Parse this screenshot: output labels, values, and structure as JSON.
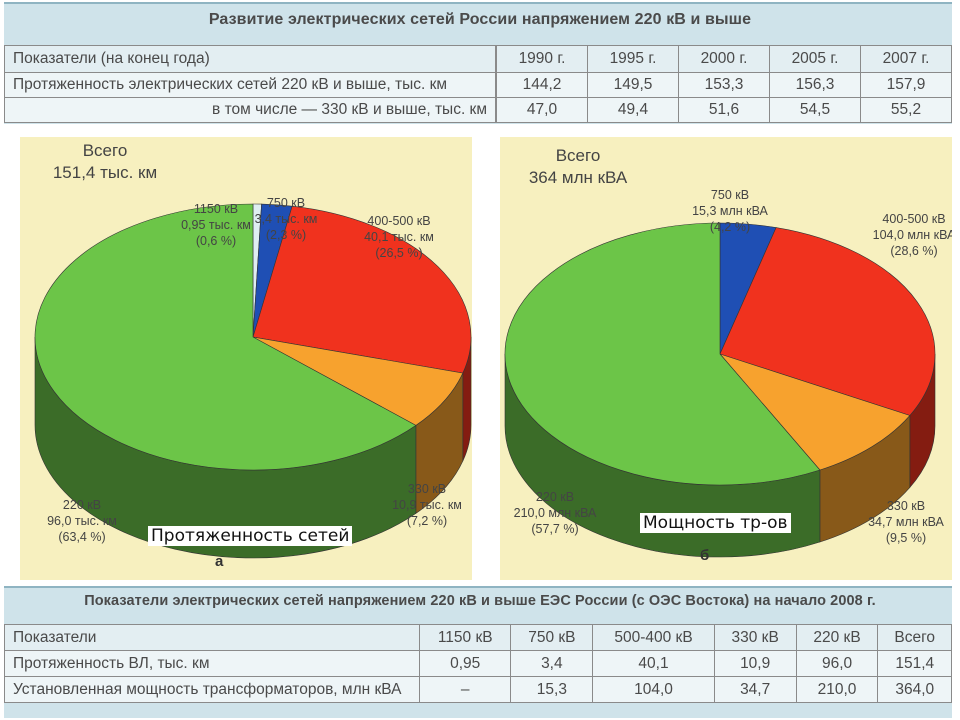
{
  "top": {
    "title": "Развитие электрических сетей России напряжением 220 кВ и выше",
    "header": [
      "Показатели (на конец года)",
      "1990 г.",
      "1995 г.",
      "2000 г.",
      "2005 г.",
      "2007 г."
    ],
    "rows": [
      {
        "label": "Протяженность электрических сетей 220 кВ и выше, тыс. км",
        "values": [
          "144,2",
          "149,5",
          "153,3",
          "156,3",
          "157,9"
        ]
      },
      {
        "label": "в том числе — 330 кВ и выше, тыс. км",
        "values": [
          "47,0",
          "49,4",
          "51,6",
          "54,5",
          "55,2"
        ]
      }
    ]
  },
  "chart_data": [
    {
      "type": "pie",
      "total_label": [
        "Всего",
        "151,4 тыс. км"
      ],
      "caption": "Протяженность сетей",
      "letter": "а",
      "slices": [
        {
          "name": "1150 кВ",
          "value": 0.95,
          "percent": 0.6,
          "color": "#dfeef2",
          "label": [
            "1150 кВ",
            "0,95 тыс. км",
            "(0,6 %)"
          ]
        },
        {
          "name": "750 кВ",
          "value": 3.4,
          "percent": 2.3,
          "color": "#1f4fb4",
          "label": [
            "750 кВ",
            "3,4 тыс. км",
            "(2,3 %)"
          ]
        },
        {
          "name": "400-500 кВ",
          "value": 40.1,
          "percent": 26.5,
          "color": "#f0321e",
          "label": [
            "400-500 кВ",
            "40,1 тыс. км",
            "(26,5 %)"
          ]
        },
        {
          "name": "330 кВ",
          "value": 10.9,
          "percent": 7.2,
          "color": "#f7a22e",
          "label": [
            "330 кВ",
            "10,9 тыс. км",
            "(7,2 %)"
          ]
        },
        {
          "name": "220 кВ",
          "value": 96.0,
          "percent": 63.4,
          "color": "#6cc548",
          "label": [
            "220 кВ",
            "96,0 тыс. км",
            "(63,4 %)"
          ]
        }
      ]
    },
    {
      "type": "pie",
      "total_label": [
        "Всего",
        "364 млн кВА"
      ],
      "caption": "Мощность тр-ов",
      "letter": "б",
      "slices": [
        {
          "name": "750 кВ",
          "value": 15.3,
          "percent": 4.2,
          "color": "#1f4fb4",
          "label": [
            "750 кВ",
            "15,3 млн кВА",
            "(4,2 %)"
          ]
        },
        {
          "name": "400-500 кВ",
          "value": 104.0,
          "percent": 28.6,
          "color": "#f0321e",
          "label": [
            "400-500 кВ",
            "104,0 млн кВА",
            "(28,6 %)"
          ]
        },
        {
          "name": "330 кВ",
          "value": 34.7,
          "percent": 9.5,
          "color": "#f7a22e",
          "label": [
            "330 кВ",
            "34,7 млн кВА",
            "(9,5 %)"
          ]
        },
        {
          "name": "220 кВ",
          "value": 210.0,
          "percent": 57.7,
          "color": "#6cc548",
          "label": [
            "220 кВ",
            "210,0 млн кВА",
            "(57,7 %)"
          ]
        }
      ]
    }
  ],
  "bottom": {
    "title": "Показатели электрических сетей напряжением 220 кВ и выше ЕЭС России (с ОЭС Востока) на начало 2008 г.",
    "header": [
      "Показатели",
      "1150 кВ",
      "750 кВ",
      "500-400 кВ",
      "330 кВ",
      "220 кВ",
      "Всего"
    ],
    "rows": [
      {
        "label": "Протяженность ВЛ, тыс. км",
        "values": [
          "0,95",
          "3,4",
          "40,1",
          "10,9",
          "96,0",
          "151,4"
        ]
      },
      {
        "label": "Установленная мощность трансформаторов, млн кВА",
        "values": [
          "–",
          "15,3",
          "104,0",
          "34,7",
          "210,0",
          "364,0"
        ]
      }
    ]
  }
}
